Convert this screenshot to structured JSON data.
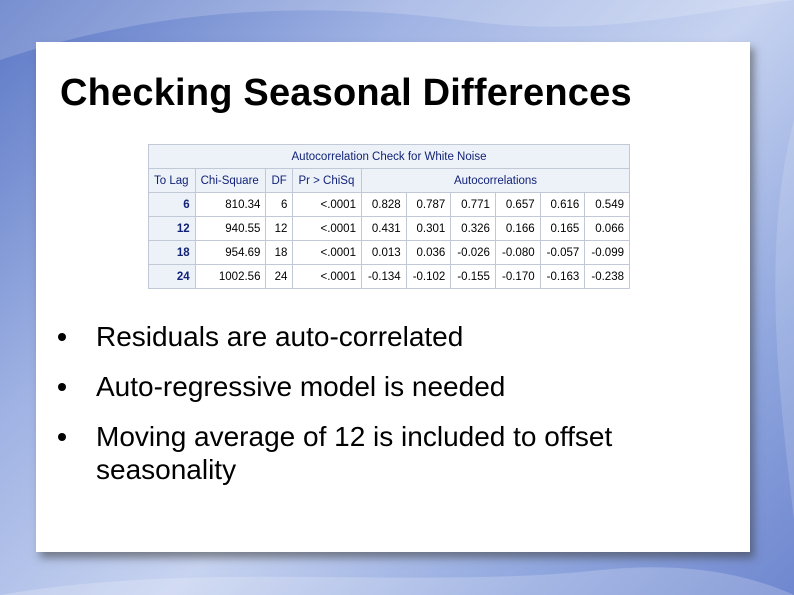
{
  "slide": {
    "title": "Checking Seasonal Differences",
    "bullets": [
      "Residuals are auto-correlated",
      "Auto-regressive model is needed",
      "Moving average of 12 is included to offset seasonality"
    ]
  },
  "table": {
    "caption": "Autocorrelation Check for White Noise",
    "headers": [
      "To Lag",
      "Chi-Square",
      "DF",
      "Pr > ChiSq",
      "Autocorrelations"
    ],
    "rows": [
      {
        "lag": "6",
        "chi": "810.34",
        "df": "6",
        "pr": "<.0001",
        "ac": [
          "0.828",
          "0.787",
          "0.771",
          "0.657",
          "0.616",
          "0.549"
        ]
      },
      {
        "lag": "12",
        "chi": "940.55",
        "df": "12",
        "pr": "<.0001",
        "ac": [
          "0.431",
          "0.301",
          "0.326",
          "0.166",
          "0.165",
          "0.066"
        ]
      },
      {
        "lag": "18",
        "chi": "954.69",
        "df": "18",
        "pr": "<.0001",
        "ac": [
          "0.013",
          "0.036",
          "-0.026",
          "-0.080",
          "-0.057",
          "-0.099"
        ]
      },
      {
        "lag": "24",
        "chi": "1002.56",
        "df": "24",
        "pr": "<.0001",
        "ac": [
          "-0.134",
          "-0.102",
          "-0.155",
          "-0.170",
          "-0.163",
          "-0.238"
        ]
      }
    ]
  }
}
